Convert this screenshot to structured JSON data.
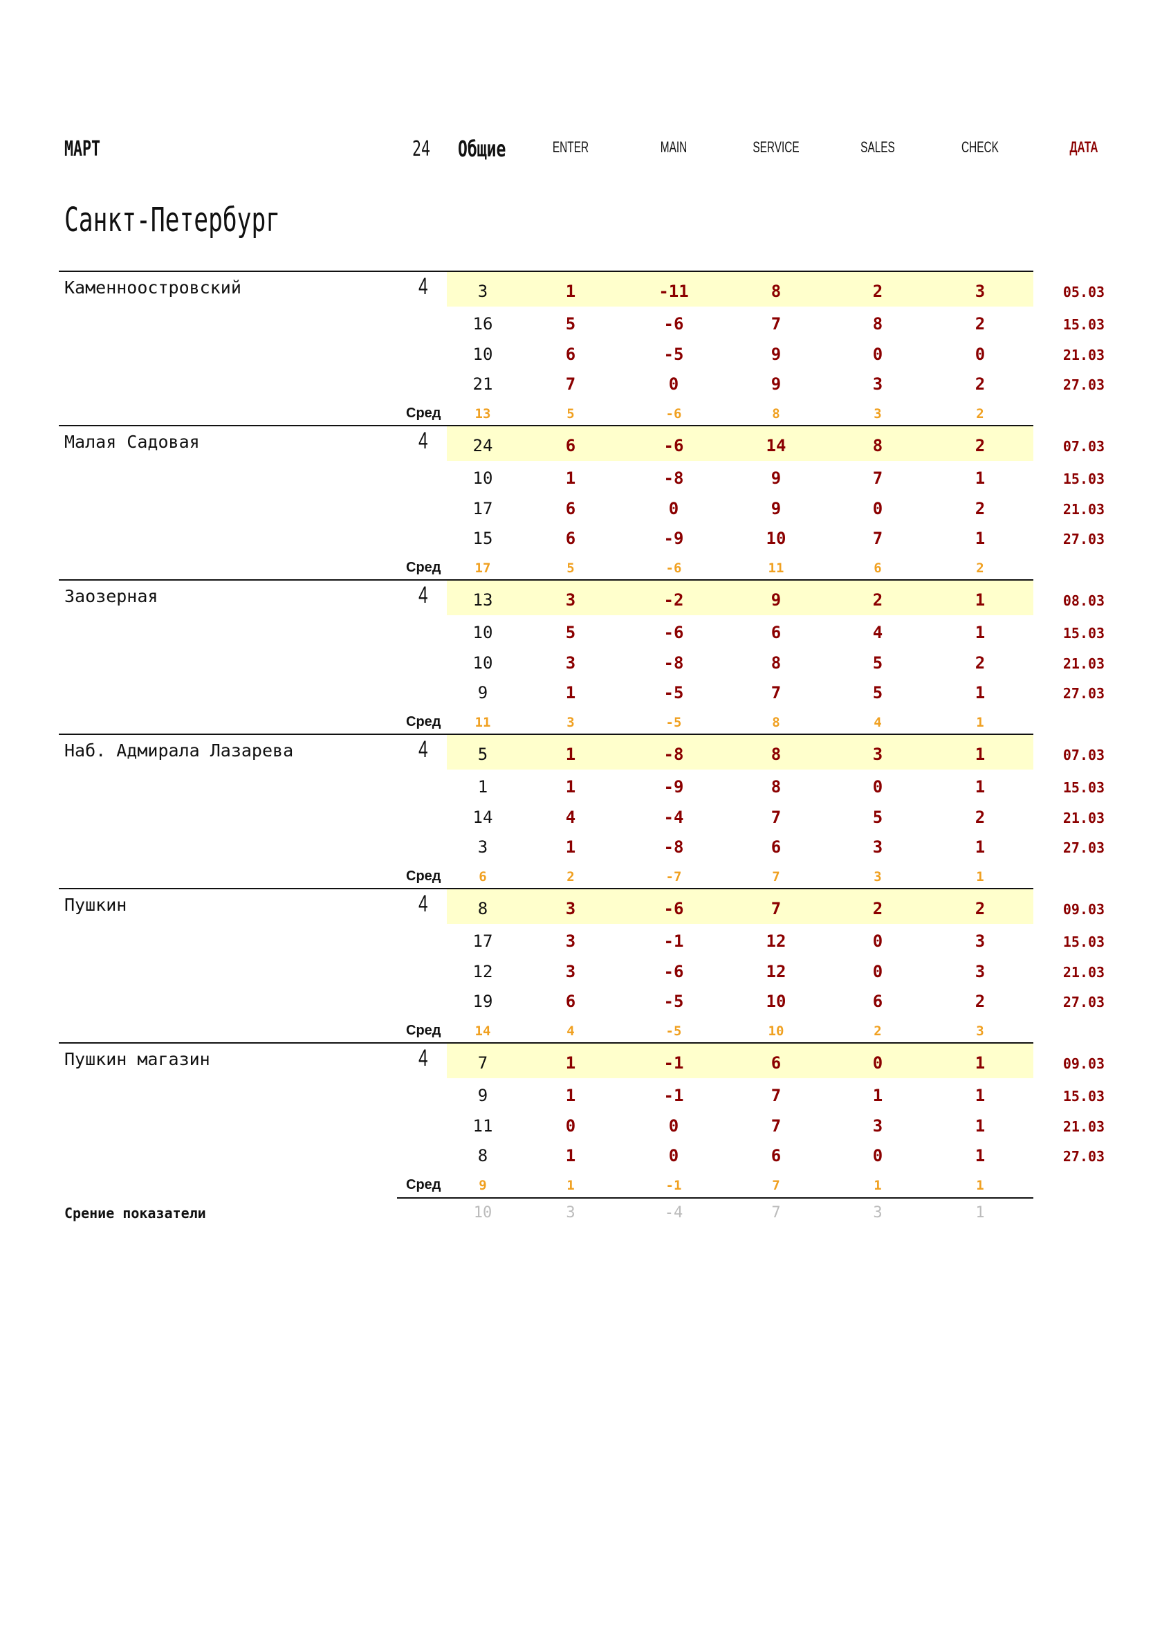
{
  "header": {
    "month": "МАРТ",
    "count": "24",
    "general": "Общие",
    "columns": [
      "ENTER",
      "MAIN",
      "SERVICE",
      "SALES",
      "CHECK"
    ],
    "date_label": "ДАТА"
  },
  "city": "Санкт-Петербург",
  "avg_label": "Сред",
  "colors": {
    "accent": "#8b0000",
    "average": "#f0a020",
    "highlight": "#ffffcc",
    "summary": "#bbbbbb"
  },
  "blocks": [
    {
      "name": "Каменноостровский",
      "count": "4",
      "rows": [
        {
          "total": "3",
          "vals": [
            "1",
            "-11",
            "8",
            "2",
            "3"
          ],
          "date": "05.03"
        },
        {
          "total": "16",
          "vals": [
            "5",
            "-6",
            "7",
            "8",
            "2"
          ],
          "date": "15.03"
        },
        {
          "total": "10",
          "vals": [
            "6",
            "-5",
            "9",
            "0",
            "0"
          ],
          "date": "21.03"
        },
        {
          "total": "21",
          "vals": [
            "7",
            "0",
            "9",
            "3",
            "2"
          ],
          "date": "27.03"
        }
      ],
      "avg": [
        "13",
        "5",
        "-6",
        "8",
        "3",
        "2"
      ]
    },
    {
      "name": "Малая Садовая",
      "count": "4",
      "rows": [
        {
          "total": "24",
          "vals": [
            "6",
            "-6",
            "14",
            "8",
            "2"
          ],
          "date": "07.03"
        },
        {
          "total": "10",
          "vals": [
            "1",
            "-8",
            "9",
            "7",
            "1"
          ],
          "date": "15.03"
        },
        {
          "total": "17",
          "vals": [
            "6",
            "0",
            "9",
            "0",
            "2"
          ],
          "date": "21.03"
        },
        {
          "total": "15",
          "vals": [
            "6",
            "-9",
            "10",
            "7",
            "1"
          ],
          "date": "27.03"
        }
      ],
      "avg": [
        "17",
        "5",
        "-6",
        "11",
        "6",
        "2"
      ]
    },
    {
      "name": "Заозерная",
      "count": "4",
      "rows": [
        {
          "total": "13",
          "vals": [
            "3",
            "-2",
            "9",
            "2",
            "1"
          ],
          "date": "08.03"
        },
        {
          "total": "10",
          "vals": [
            "5",
            "-6",
            "6",
            "4",
            "1"
          ],
          "date": "15.03"
        },
        {
          "total": "10",
          "vals": [
            "3",
            "-8",
            "8",
            "5",
            "2"
          ],
          "date": "21.03"
        },
        {
          "total": "9",
          "vals": [
            "1",
            "-5",
            "7",
            "5",
            "1"
          ],
          "date": "27.03"
        }
      ],
      "avg": [
        "11",
        "3",
        "-5",
        "8",
        "4",
        "1"
      ]
    },
    {
      "name": "Наб. Адмирала Лазарева",
      "count": "4",
      "rows": [
        {
          "total": "5",
          "vals": [
            "1",
            "-8",
            "8",
            "3",
            "1"
          ],
          "date": "07.03"
        },
        {
          "total": "1",
          "vals": [
            "1",
            "-9",
            "8",
            "0",
            "1"
          ],
          "date": "15.03"
        },
        {
          "total": "14",
          "vals": [
            "4",
            "-4",
            "7",
            "5",
            "2"
          ],
          "date": "21.03"
        },
        {
          "total": "3",
          "vals": [
            "1",
            "-8",
            "6",
            "3",
            "1"
          ],
          "date": "27.03"
        }
      ],
      "avg": [
        "6",
        "2",
        "-7",
        "7",
        "3",
        "1"
      ]
    },
    {
      "name": "Пушкин",
      "count": "4",
      "rows": [
        {
          "total": "8",
          "vals": [
            "3",
            "-6",
            "7",
            "2",
            "2"
          ],
          "date": "09.03"
        },
        {
          "total": "17",
          "vals": [
            "3",
            "-1",
            "12",
            "0",
            "3"
          ],
          "date": "15.03"
        },
        {
          "total": "12",
          "vals": [
            "3",
            "-6",
            "12",
            "0",
            "3"
          ],
          "date": "21.03"
        },
        {
          "total": "19",
          "vals": [
            "6",
            "-5",
            "10",
            "6",
            "2"
          ],
          "date": "27.03"
        }
      ],
      "avg": [
        "14",
        "4",
        "-5",
        "10",
        "2",
        "3"
      ]
    },
    {
      "name": "Пушкин магазин",
      "count": "4",
      "rows": [
        {
          "total": "7",
          "vals": [
            "1",
            "-1",
            "6",
            "0",
            "1"
          ],
          "date": "09.03"
        },
        {
          "total": "9",
          "vals": [
            "1",
            "-1",
            "7",
            "1",
            "1"
          ],
          "date": "15.03"
        },
        {
          "total": "11",
          "vals": [
            "0",
            "0",
            "7",
            "3",
            "1"
          ],
          "date": "21.03"
        },
        {
          "total": "8",
          "vals": [
            "1",
            "0",
            "6",
            "0",
            "1"
          ],
          "date": "27.03"
        }
      ],
      "avg": [
        "9",
        "1",
        "-1",
        "7",
        "1",
        "1"
      ]
    }
  ],
  "summary": {
    "label": "Срение показатели",
    "values": [
      "10",
      "3",
      "-4",
      "7",
      "3",
      "1"
    ]
  }
}
